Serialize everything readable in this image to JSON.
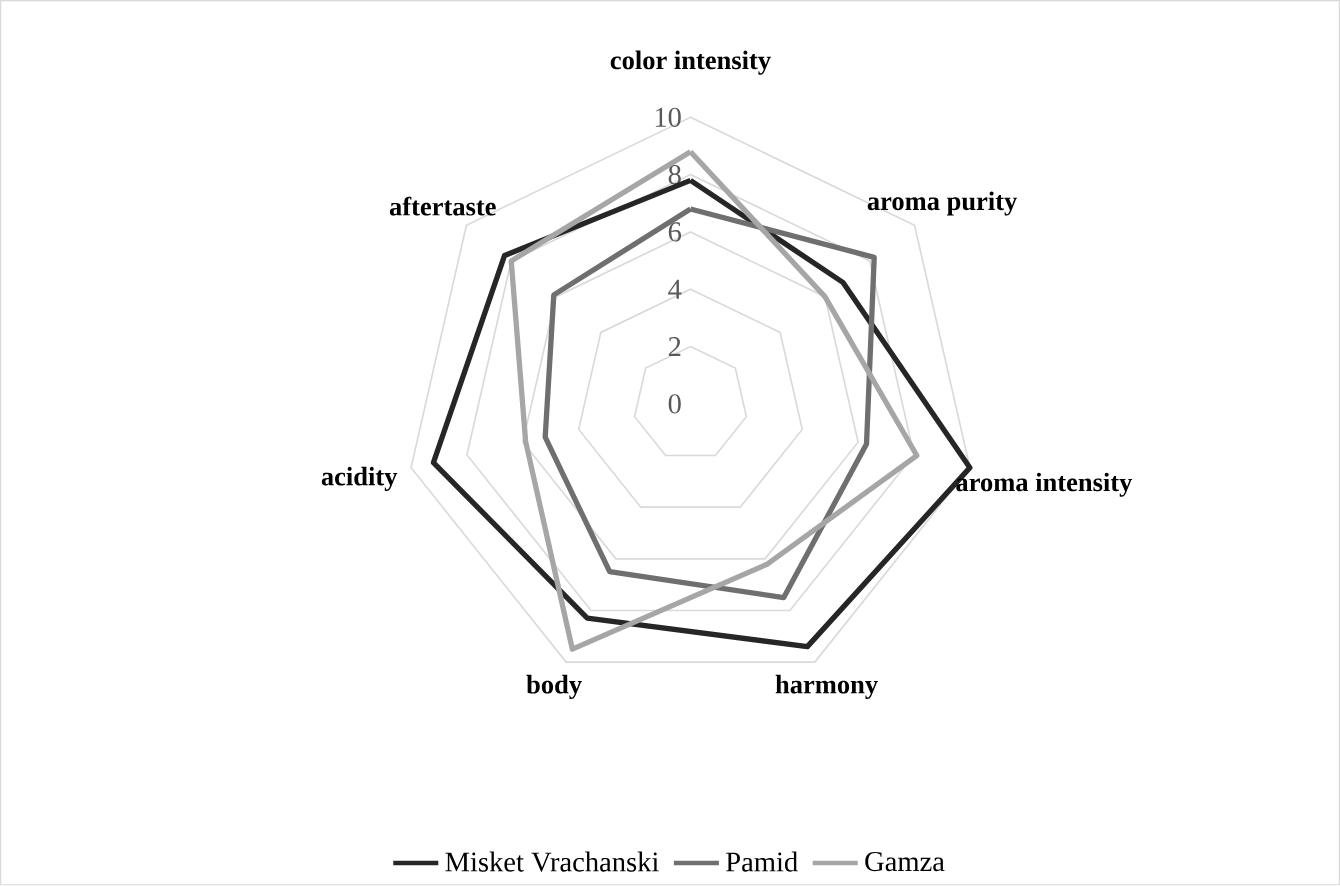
{
  "chart_data": {
    "type": "radar",
    "categories": [
      "color intensity",
      "aroma purity",
      "aroma intensity",
      "harmony",
      "body",
      "acidity",
      "aftertaste"
    ],
    "series": [
      {
        "name": "Misket Vrachanski",
        "color": "#262626",
        "values": [
          7.8,
          6.8,
          10.0,
          9.4,
          8.3,
          9.2,
          8.3
        ]
      },
      {
        "name": "Pamid",
        "color": "#6f6f6f",
        "values": [
          6.8,
          8.2,
          6.3,
          7.5,
          6.5,
          5.2,
          6.1
        ]
      },
      {
        "name": "Gamza",
        "color": "#a6a6a6",
        "values": [
          8.8,
          6.0,
          8.1,
          6.2,
          9.5,
          5.9,
          8.0
        ]
      }
    ],
    "ylim": [
      0,
      10
    ],
    "yticks": [
      0,
      2,
      4,
      6,
      8,
      10
    ],
    "grid": true,
    "legend": "bottom",
    "marker": "none",
    "line_style": "solid"
  }
}
